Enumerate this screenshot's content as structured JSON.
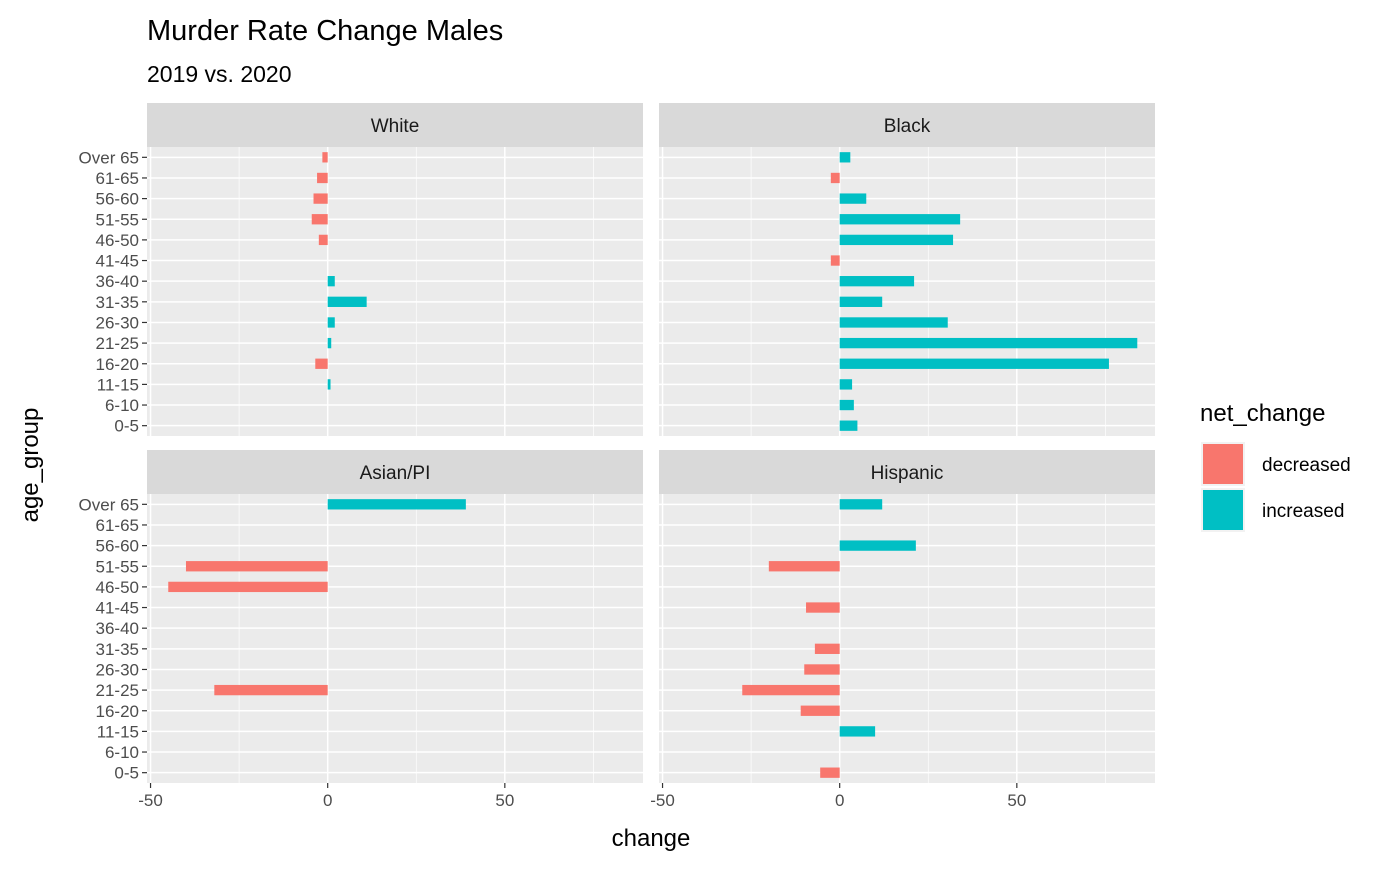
{
  "chart_data": {
    "type": "bar",
    "orientation": "horizontal",
    "title": "Murder Rate Change Males",
    "subtitle": "2019 vs. 2020",
    "xlabel": "change",
    "ylabel": "age_group",
    "xlim": [
      -51,
      89
    ],
    "x_ticks": [
      -50,
      0,
      50
    ],
    "grid": true,
    "categories": [
      "0-5",
      "6-10",
      "11-15",
      "16-20",
      "21-25",
      "26-30",
      "31-35",
      "36-40",
      "41-45",
      "46-50",
      "51-55",
      "56-60",
      "61-65",
      "Over 65"
    ],
    "legend": {
      "title": "net_change",
      "position": "right",
      "entries": [
        {
          "label": "decreased",
          "color": "#F8766D"
        },
        {
          "label": "increased",
          "color": "#00BFC4"
        }
      ]
    },
    "panels": [
      {
        "name": "White",
        "values": [
          null,
          null,
          0.8,
          -3.5,
          1,
          2,
          11,
          2,
          null,
          -2.5,
          -4.5,
          -4,
          -3,
          -1.5
        ]
      },
      {
        "name": "Black",
        "values": [
          5,
          4,
          3.5,
          76,
          84,
          30.5,
          12,
          21,
          -2.5,
          32,
          34,
          7.5,
          -2.5,
          3
        ]
      },
      {
        "name": "Asian/PI",
        "values": [
          null,
          null,
          null,
          null,
          -32,
          null,
          null,
          null,
          null,
          -45,
          -40,
          null,
          null,
          39
        ]
      },
      {
        "name": "Hispanic",
        "values": [
          -5.5,
          null,
          10,
          -11,
          -27.5,
          -10,
          -7,
          null,
          -9.5,
          null,
          -20,
          21.5,
          null,
          12
        ]
      }
    ]
  }
}
